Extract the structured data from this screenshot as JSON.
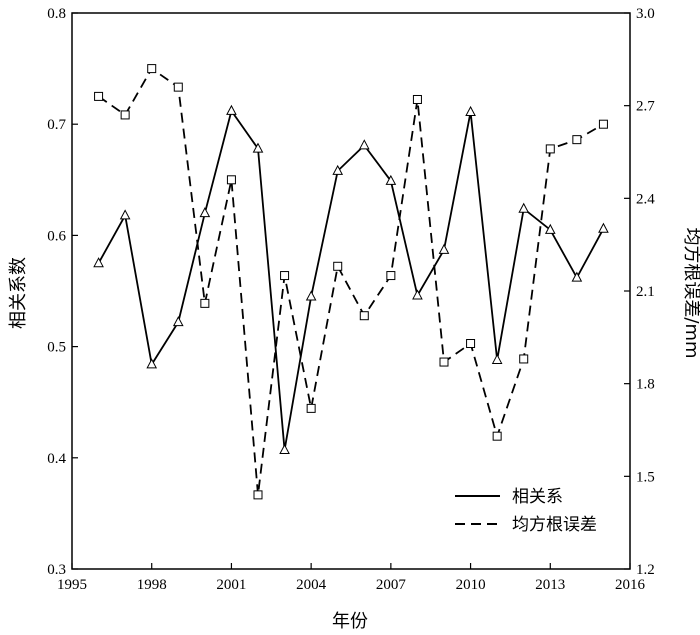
{
  "chart_data": {
    "type": "line",
    "xlabel": "年份",
    "ylabel_left": "相关系数",
    "ylabel_right": "均方根误差/mm",
    "xlim": [
      1995,
      2016
    ],
    "xticks": [
      1995,
      1998,
      2001,
      2004,
      2007,
      2010,
      2013,
      2016
    ],
    "xtick_labels": [
      "1995",
      "1998",
      "2001",
      "2004",
      "2007",
      "2010",
      "2013",
      "2016"
    ],
    "ylim_left": [
      0.3,
      0.8
    ],
    "yticks_left_labels": [
      "0.3",
      "0.4",
      "0.5",
      "0.6",
      "0.7",
      "0.8"
    ],
    "ylim_right": [
      1.2,
      3.0
    ],
    "yticks_right_labels": [
      "1.2",
      "1.5",
      "1.8",
      "2.1",
      "2.4",
      "2.7",
      "3.0"
    ],
    "grid": false,
    "legend_position": "bottom-right",
    "x": [
      1996,
      1997,
      1998,
      1999,
      2000,
      2001,
      2002,
      2003,
      2004,
      2005,
      2006,
      2007,
      2008,
      2009,
      2010,
      2011,
      2012,
      2013,
      2014,
      2015
    ],
    "series": [
      {
        "name": "相关系",
        "axis": "left",
        "line_style": "solid",
        "marker": "triangle",
        "values": [
          0.575,
          0.618,
          0.484,
          0.522,
          0.62,
          0.712,
          0.678,
          0.407,
          0.545,
          0.658,
          0.681,
          0.649,
          0.546,
          0.587,
          0.711,
          0.488,
          0.624,
          0.605,
          0.562,
          0.606
        ]
      },
      {
        "name": "均方根误差",
        "axis": "right",
        "line_style": "dashed",
        "marker": "square",
        "values": [
          2.73,
          2.67,
          2.82,
          2.76,
          2.06,
          2.46,
          1.44,
          2.15,
          1.72,
          2.18,
          2.02,
          2.15,
          2.72,
          1.87,
          1.93,
          1.63,
          1.88,
          2.56,
          2.59,
          2.64
        ]
      }
    ]
  }
}
